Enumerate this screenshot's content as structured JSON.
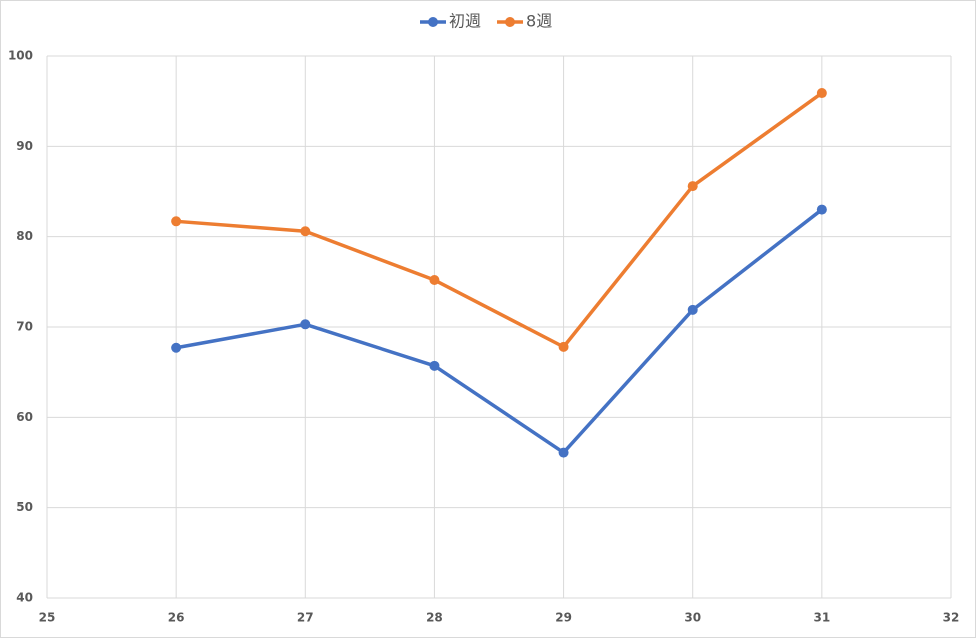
{
  "chart_data": {
    "type": "line",
    "x": [
      26,
      27,
      28,
      29,
      30,
      31
    ],
    "series": [
      {
        "name": "初週",
        "color": "#4472c4",
        "values": [
          67.7,
          70.3,
          65.7,
          56.1,
          71.9,
          83.0
        ]
      },
      {
        "name": "8週",
        "color": "#ed7d31",
        "values": [
          81.7,
          80.6,
          75.2,
          67.8,
          85.6,
          95.9
        ]
      }
    ],
    "xlim": [
      25,
      32
    ],
    "xticks": [
      25,
      26,
      27,
      28,
      29,
      30,
      31,
      32
    ],
    "ylim": [
      40,
      100
    ],
    "yticks": [
      40,
      50,
      60,
      70,
      80,
      90,
      100
    ],
    "grid": true,
    "legend": "top"
  }
}
